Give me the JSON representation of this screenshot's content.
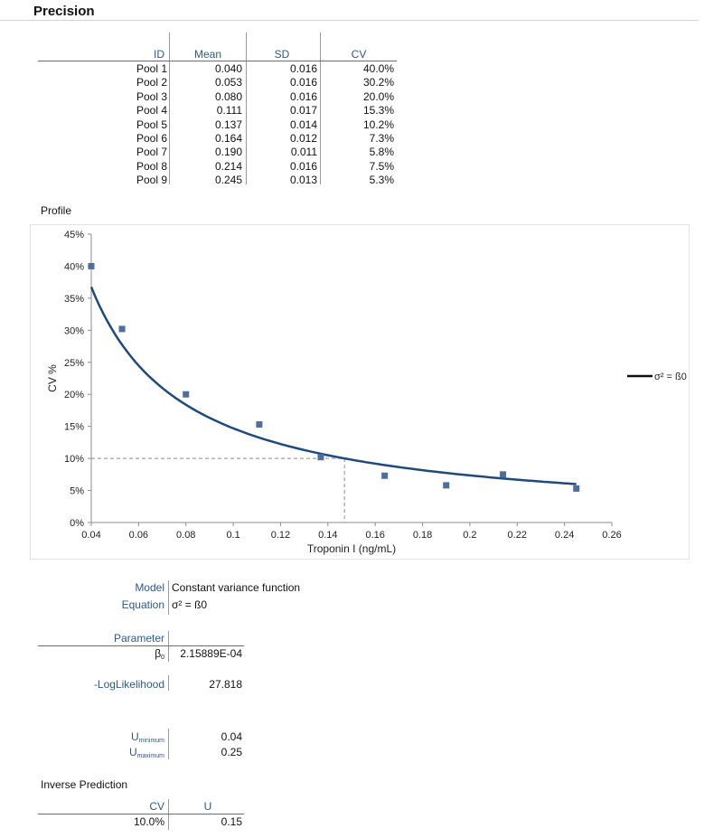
{
  "page": {
    "title": "Precision"
  },
  "precision_table": {
    "headers": [
      "ID",
      "Mean",
      "SD",
      "CV"
    ],
    "rows": [
      [
        "Pool 1",
        "0.040",
        "0.016",
        "40.0%"
      ],
      [
        "Pool 2",
        "0.053",
        "0.016",
        "30.2%"
      ],
      [
        "Pool 3",
        "0.080",
        "0.016",
        "20.0%"
      ],
      [
        "Pool 4",
        "0.111",
        "0.017",
        "15.3%"
      ],
      [
        "Pool 5",
        "0.137",
        "0.014",
        "10.2%"
      ],
      [
        "Pool 6",
        "0.164",
        "0.012",
        "7.3%"
      ],
      [
        "Pool 7",
        "0.190",
        "0.011",
        "5.8%"
      ],
      [
        "Pool 8",
        "0.214",
        "0.016",
        "7.5%"
      ],
      [
        "Pool 9",
        "0.245",
        "0.013",
        "5.3%"
      ]
    ]
  },
  "profile_label": "Profile",
  "chart_data": {
    "type": "scatter",
    "xlabel": "Troponin I (ng/mL)",
    "ylabel": "CV %",
    "xlim": [
      0.04,
      0.26
    ],
    "ylim": [
      0,
      45
    ],
    "x_ticks": [
      "0.04",
      "0.06",
      "0.08",
      "0.1",
      "0.12",
      "0.14",
      "0.16",
      "0.18",
      "0.2",
      "0.22",
      "0.24",
      "0.26"
    ],
    "y_ticks": [
      "0%",
      "5%",
      "10%",
      "15%",
      "20%",
      "25%",
      "30%",
      "35%",
      "40%",
      "45%"
    ],
    "points": [
      {
        "x": 0.04,
        "y": 40.0
      },
      {
        "x": 0.053,
        "y": 30.2
      },
      {
        "x": 0.08,
        "y": 20.0
      },
      {
        "x": 0.111,
        "y": 15.3
      },
      {
        "x": 0.137,
        "y": 10.2
      },
      {
        "x": 0.164,
        "y": 7.3
      },
      {
        "x": 0.19,
        "y": 5.8
      },
      {
        "x": 0.214,
        "y": 7.5
      },
      {
        "x": 0.245,
        "y": 5.3
      }
    ],
    "curve": {
      "name": "σ² = ß0",
      "x_range": [
        0.04,
        0.245
      ],
      "k": 1.47
    },
    "reference": {
      "x": 0.147,
      "y": 10
    },
    "legend_position": "right",
    "colors": {
      "points": "#4e6e9c",
      "curve": "#1e4a7c",
      "reference": "#8a8a8a"
    }
  },
  "model": {
    "model_label": "Model",
    "model_value": "Constant variance function",
    "equation_label": "Equation",
    "equation_value": "σ² = ß0"
  },
  "parameter": {
    "header": "Parameter",
    "name_base": "β",
    "name_sub": "0",
    "value": "2.15889E-04"
  },
  "loglikelihood": {
    "label": "-LogLikelihood",
    "value": "27.818"
  },
  "u_range": {
    "min_base": "U",
    "min_sub": "minimum",
    "min_value": "0.04",
    "max_base": "U",
    "max_sub": "maximum",
    "max_value": "0.25"
  },
  "inverse": {
    "label": "Inverse Prediction",
    "headers": [
      "CV",
      "U"
    ],
    "row": [
      "10.0%",
      "0.15"
    ]
  }
}
